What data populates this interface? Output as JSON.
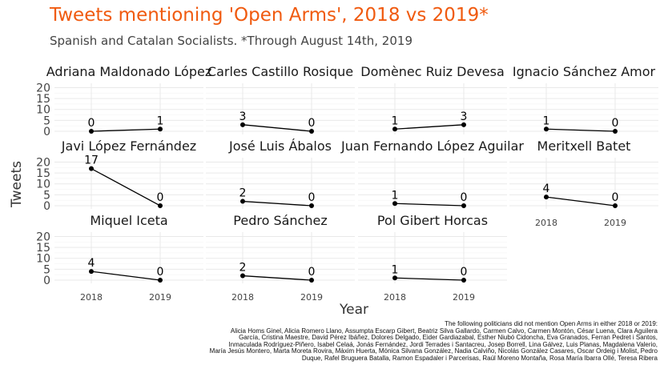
{
  "title": "Tweets mentioning 'Open Arms', 2018 vs 2019*",
  "subtitle": "Spanish and Catalan Socialists. *Through August 14th, 2019",
  "chart_data": {
    "type": "line",
    "xlabel": "Year",
    "ylabel": "Tweets",
    "x": [
      "2018",
      "2019"
    ],
    "y_ticks": [
      0,
      5,
      10,
      15,
      20
    ],
    "ylim": [
      0,
      22
    ],
    "grid": true,
    "panels": [
      {
        "name": "Adriana Maldonado López",
        "values": [
          0,
          1
        ]
      },
      {
        "name": "Carles Castillo Rosique",
        "values": [
          3,
          0
        ]
      },
      {
        "name": "Domènec Ruiz Devesa",
        "values": [
          1,
          3
        ]
      },
      {
        "name": "Ignacio Sánchez Amor",
        "values": [
          1,
          0
        ]
      },
      {
        "name": "Javi López Fernández",
        "values": [
          17,
          0
        ]
      },
      {
        "name": "José Luis Ábalos",
        "values": [
          2,
          0
        ]
      },
      {
        "name": "Juan Fernando López Aguilar",
        "values": [
          1,
          0
        ]
      },
      {
        "name": "Meritxell Batet",
        "values": [
          4,
          0
        ]
      },
      {
        "name": "Miquel Iceta",
        "values": [
          4,
          0
        ]
      },
      {
        "name": "Pedro Sánchez",
        "values": [
          2,
          0
        ]
      },
      {
        "name": "Pol Gibert Horcas",
        "values": [
          1,
          0
        ]
      }
    ]
  },
  "caption_lines": [
    "The following politicians did not mention Open Arms in either 2018 or 2019:",
    "Alicia Homs Ginel, Alicia Romero Llano, Assumpta Escarp Gibert, Beatriz Silva Gallardo, Carmen Calvo, Carmen Montón, César Luena, Clara Aguilera",
    "García, Cristina Maestre, David Pérez Ibáñez, Dolores Delgado, Eider Gardiazabal, Esther Niubó Cidoncha, Eva Granados, Ferran Pedret i Santos,",
    "Inmaculada Rodríguez-Piñero, Isabel Celaá, Jonás Fernández, Jordi Terrades i Santacreu, Josep Borrell, Lina Gálvez, Luis Planas, Magdalena Valerio,",
    "María Jesús Montero, Marta Moreta Rovira, Màxim Huerta, Mónica Silvana González, Nadia Calviño, Nicolás González Casares, Òscar Ordeig i Molist, Pedro",
    "Duque, Rafel Bruguera Batalla, Ramon Espadaler i Parcerisas, Raúl Moreno Montaña, Rosa María Ibarra Ollé, Teresa Ribera"
  ]
}
